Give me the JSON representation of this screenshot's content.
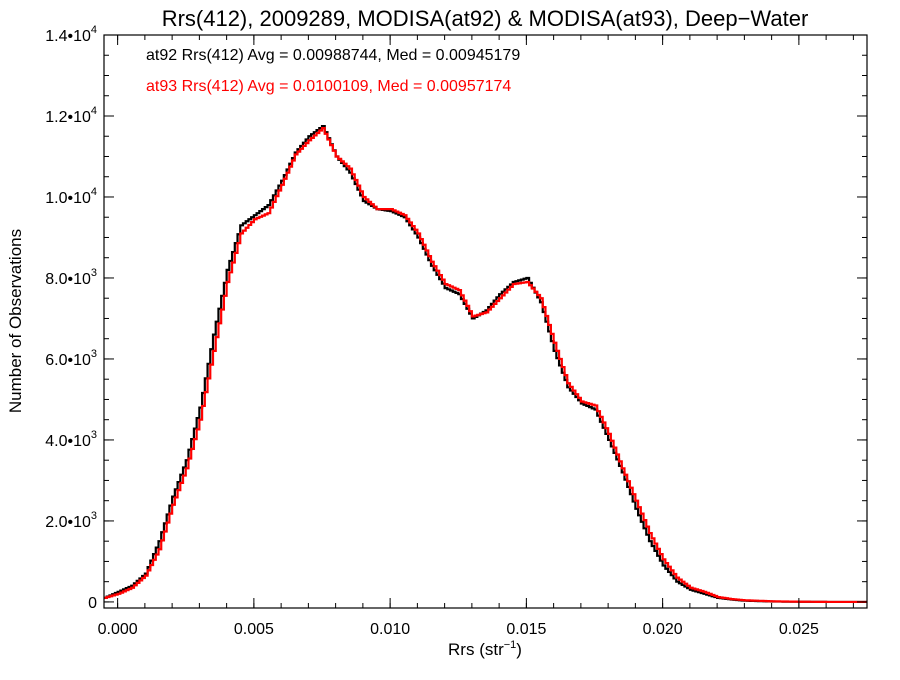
{
  "chart_data": {
    "type": "line",
    "title": "Rrs(412), 2009289, MODISA(at92) & MODISA(at93), Deep−Water",
    "xlabel_main": "Rrs (str",
    "xlabel_sup": "−1",
    "xlabel_end": ")",
    "ylabel": "Number of Observations",
    "xlim": [
      -0.0005,
      0.0275
    ],
    "ylim": [
      -150,
      14000
    ],
    "x_ticks": [
      {
        "value": 0.0,
        "label": "0.000"
      },
      {
        "value": 0.005,
        "label": "0.005"
      },
      {
        "value": 0.01,
        "label": "0.010"
      },
      {
        "value": 0.015,
        "label": "0.015"
      },
      {
        "value": 0.02,
        "label": "0.020"
      },
      {
        "value": 0.025,
        "label": "0.025"
      }
    ],
    "y_ticks": [
      {
        "value": 0,
        "mant": "0",
        "exp": ""
      },
      {
        "value": 2000,
        "mant": "2.0•10",
        "exp": "3"
      },
      {
        "value": 4000,
        "mant": "4.0•10",
        "exp": "3"
      },
      {
        "value": 6000,
        "mant": "6.0•10",
        "exp": "3"
      },
      {
        "value": 8000,
        "mant": "8.0•10",
        "exp": "3"
      },
      {
        "value": 10000,
        "mant": "1.0•10",
        "exp": "4"
      },
      {
        "value": 12000,
        "mant": "1.2•10",
        "exp": "4"
      },
      {
        "value": 14000,
        "mant": "1.4•10",
        "exp": "4"
      }
    ],
    "annotations": [
      {
        "text": "at92 Rrs(412) Avg = 0.00988744, Med = 0.00945179",
        "color": "#000000"
      },
      {
        "text": "at93 Rrs(412) Avg = 0.0100109, Med = 0.00957174",
        "color": "#ff0000"
      }
    ],
    "series": [
      {
        "label": "at92",
        "color": "#000000",
        "x": [
          -0.0005,
          0.0,
          0.0005,
          0.001,
          0.0015,
          0.002,
          0.0025,
          0.003,
          0.0035,
          0.004,
          0.0045,
          0.005,
          0.0055,
          0.006,
          0.0065,
          0.007,
          0.0075,
          0.008,
          0.0085,
          0.009,
          0.0095,
          0.01,
          0.0105,
          0.011,
          0.0115,
          0.012,
          0.0125,
          0.013,
          0.0135,
          0.014,
          0.0145,
          0.015,
          0.0155,
          0.016,
          0.0165,
          0.017,
          0.0175,
          0.018,
          0.0185,
          0.019,
          0.0195,
          0.02,
          0.0205,
          0.021,
          0.0215,
          0.022,
          0.0225,
          0.023,
          0.024,
          0.025,
          0.026,
          0.0275
        ],
        "y": [
          100,
          250,
          400,
          700,
          1500,
          2600,
          3500,
          4800,
          6600,
          8200,
          9300,
          9550,
          9800,
          10400,
          11100,
          11500,
          11750,
          11000,
          10600,
          9900,
          9700,
          9650,
          9500,
          9000,
          8300,
          7750,
          7600,
          7000,
          7200,
          7600,
          7900,
          8000,
          7400,
          6200,
          5300,
          4900,
          4750,
          4000,
          3200,
          2300,
          1500,
          900,
          500,
          300,
          200,
          100,
          60,
          30,
          10,
          5,
          0,
          0
        ]
      },
      {
        "label": "at93",
        "color": "#ff0000",
        "x": [
          -0.0005,
          0.0,
          0.0005,
          0.001,
          0.0015,
          0.002,
          0.0025,
          0.003,
          0.0035,
          0.004,
          0.0045,
          0.005,
          0.0055,
          0.006,
          0.0065,
          0.007,
          0.0075,
          0.008,
          0.0085,
          0.009,
          0.0095,
          0.01,
          0.0105,
          0.011,
          0.0115,
          0.012,
          0.0125,
          0.013,
          0.0135,
          0.014,
          0.0145,
          0.015,
          0.0155,
          0.016,
          0.0165,
          0.017,
          0.0175,
          0.018,
          0.0185,
          0.019,
          0.0195,
          0.02,
          0.0205,
          0.021,
          0.0215,
          0.022,
          0.0225,
          0.023,
          0.024,
          0.025,
          0.026,
          0.0275
        ],
        "y": [
          100,
          200,
          350,
          650,
          1300,
          2400,
          3300,
          4500,
          6200,
          7900,
          9100,
          9450,
          9600,
          10300,
          11050,
          11400,
          11700,
          11000,
          10700,
          10000,
          9700,
          9700,
          9550,
          9100,
          8400,
          7850,
          7700,
          7050,
          7150,
          7500,
          7850,
          7900,
          7500,
          6400,
          5400,
          4950,
          4850,
          4150,
          3300,
          2500,
          1700,
          1050,
          600,
          350,
          250,
          120,
          70,
          40,
          15,
          5,
          0,
          0
        ]
      }
    ]
  }
}
